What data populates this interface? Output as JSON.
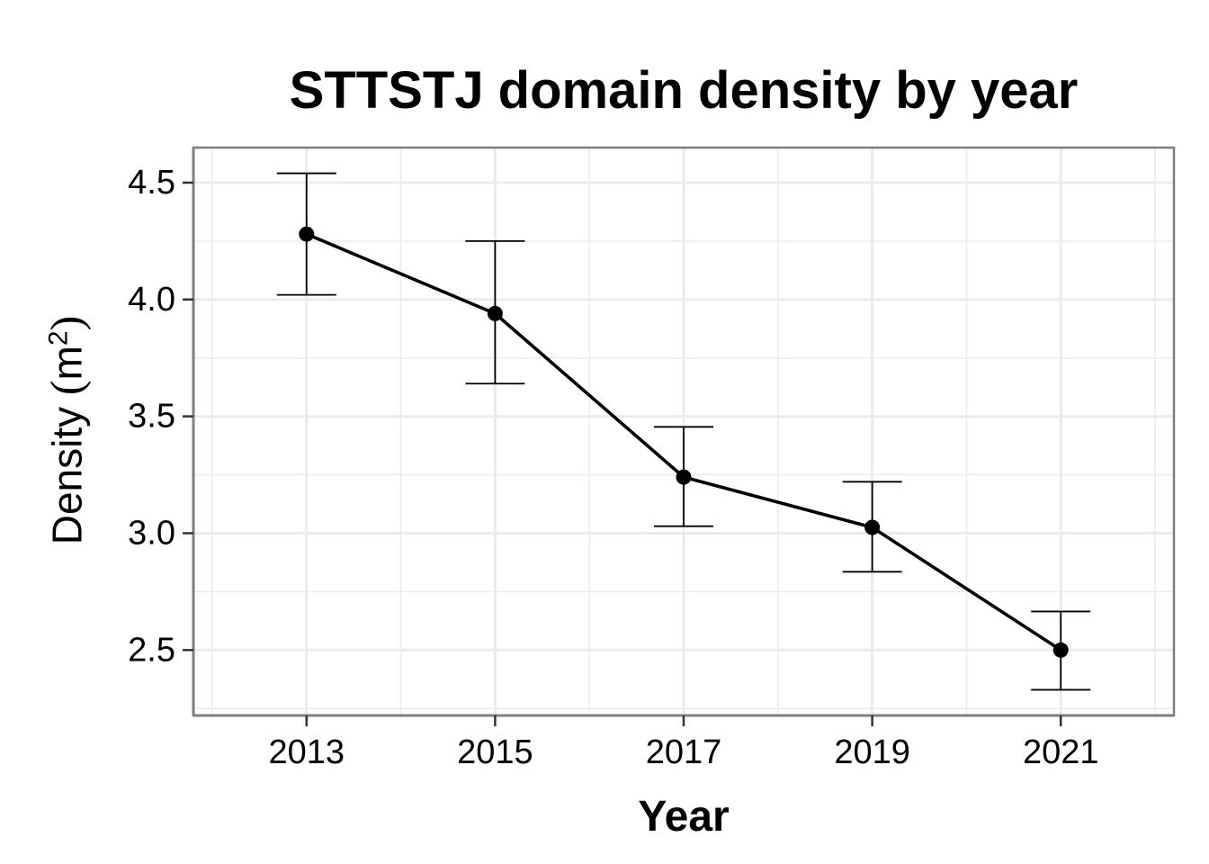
{
  "chart_data": {
    "type": "line",
    "title": "STTSTJ domain density by year",
    "xlabel": "Year",
    "ylabel": {
      "text": "Density",
      "unit_base": "m",
      "unit_exponent": "2"
    },
    "x": [
      2013,
      2015,
      2017,
      2019,
      2021
    ],
    "series": [
      {
        "values": [
          4.28,
          3.94,
          3.24,
          3.025,
          2.5
        ],
        "error_lower": [
          4.02,
          3.64,
          3.03,
          2.835,
          2.33
        ],
        "error_upper": [
          4.54,
          4.25,
          3.455,
          3.22,
          2.665
        ],
        "color": "#000000"
      }
    ],
    "xlim": [
      2011.8,
      2022.2
    ],
    "ylim": [
      2.22,
      4.65
    ],
    "xticks": [
      "2013",
      "2015",
      "2017",
      "2019",
      "2021"
    ],
    "yticks": [
      "2.5",
      "3.0",
      "3.5",
      "4.0",
      "4.5"
    ],
    "grid": true,
    "legend": "none"
  }
}
